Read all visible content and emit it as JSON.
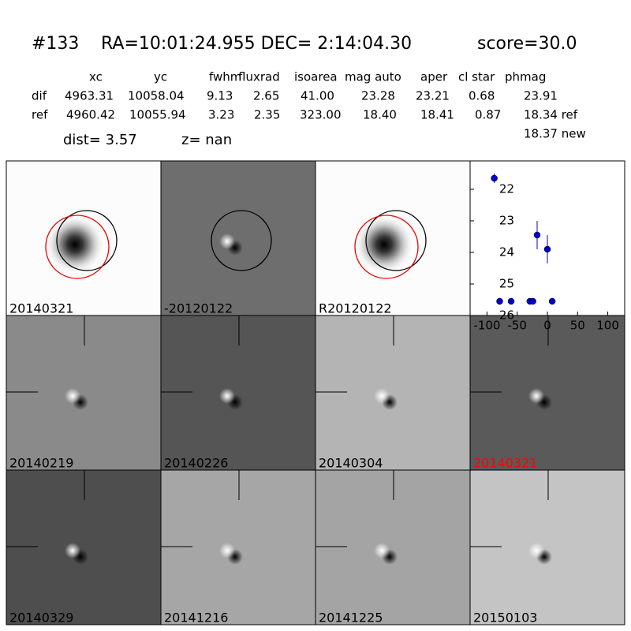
{
  "header": {
    "id": "#133",
    "coords": "RA=10:01:24.955 DEC= 2:14:04.30",
    "score": "score=30.0"
  },
  "table": {
    "columns": [
      "xc",
      "yc",
      "fwhm",
      "fluxrad",
      "isoarea",
      "mag auto",
      "aper",
      "cl star",
      "phmag"
    ],
    "rows": [
      [
        "dif",
        "4963.31",
        "10058.04",
        "9.13",
        "2.65",
        "41.00",
        "23.28",
        "23.21",
        "0.68",
        "23.91"
      ],
      [
        "ref",
        "4960.42",
        "10055.94",
        "3.23",
        "2.35",
        "323.00",
        "18.40",
        "18.41",
        "0.87",
        "18.34 ref"
      ]
    ],
    "extra": "18.37 new",
    "dist": "dist=  3.57",
    "z": "z=   nan"
  },
  "stamps": [
    {
      "label": "20140321"
    },
    {
      "label": "-20120122"
    },
    {
      "label": "R20120122"
    },
    {
      "label": "20140219"
    },
    {
      "label": "20140226"
    },
    {
      "label": "20140304"
    },
    {
      "label": "20140321",
      "label_color": "#ff0000"
    },
    {
      "label": "20140329"
    },
    {
      "label": "20141216"
    },
    {
      "label": "20141225"
    },
    {
      "label": "20150103"
    }
  ],
  "chart_data": {
    "type": "scatter",
    "color": "#0000cc",
    "x": [
      -88,
      -79,
      -60,
      -29,
      -24,
      -17,
      0,
      8
    ],
    "values": [
      21.65,
      25.55,
      25.55,
      25.55,
      25.55,
      23.45,
      23.9,
      25.55
    ],
    "errors": [
      0.15,
      0,
      0,
      0,
      0,
      0.45,
      0.45,
      0
    ],
    "xlim": [
      -128,
      128
    ],
    "ylim": [
      26,
      21.1
    ],
    "xticks": [
      -100,
      -50,
      0,
      50,
      100
    ],
    "yticks": [
      22,
      23,
      24,
      25,
      26
    ]
  }
}
